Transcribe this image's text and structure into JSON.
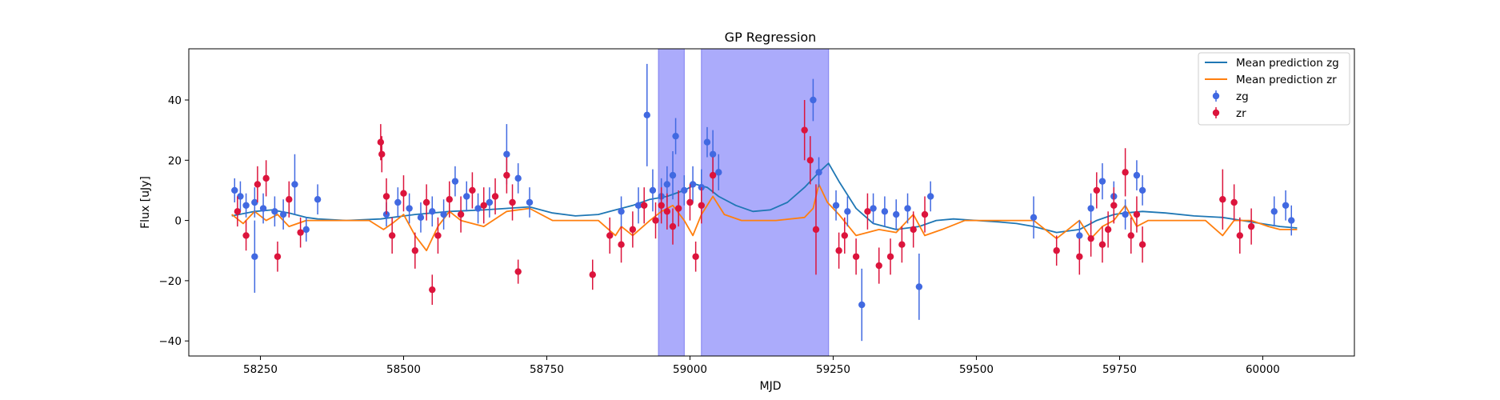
{
  "chart_data": {
    "type": "scatter",
    "title": "GP Regression",
    "xlabel": "MJD",
    "ylabel": "Flux [uJy]",
    "xlim": [
      58125,
      60160
    ],
    "ylim": [
      -45,
      57
    ],
    "x_ticks": [
      58250,
      58500,
      58750,
      59000,
      59250,
      59500,
      59750,
      60000
    ],
    "y_ticks": [
      -40,
      -20,
      0,
      20,
      40
    ],
    "grid": false,
    "legend_position": "top-right",
    "shaded_regions": [
      [
        58945,
        58990
      ],
      [
        59020,
        59242
      ]
    ],
    "shade_color": "#a6a6fb",
    "series": [
      {
        "name": "Mean prediction zg",
        "kind": "line",
        "color": "#1f77b4",
        "x": [
          58200,
          58240,
          58270,
          58300,
          58330,
          58350,
          58400,
          58460,
          58520,
          58580,
          58640,
          58680,
          58720,
          58760,
          58800,
          58840,
          58870,
          58900,
          58930,
          58960,
          58990,
          59010,
          59030,
          59050,
          59080,
          59110,
          59140,
          59170,
          59200,
          59225,
          59242,
          59260,
          59290,
          59320,
          59360,
          59400,
          59430,
          59460,
          59500,
          59540,
          59570,
          59600,
          59640,
          59680,
          59710,
          59740,
          59760,
          59790,
          59830,
          59880,
          59930,
          59980,
          60030,
          60060
        ],
        "y": [
          1.5,
          3,
          3.5,
          2.5,
          1,
          0.5,
          0,
          0.5,
          2,
          3,
          3.5,
          4,
          4.5,
          2.5,
          1.5,
          2,
          3.5,
          5,
          7,
          8,
          10,
          12,
          11,
          8,
          5,
          3,
          3.5,
          6,
          11,
          16,
          19,
          13,
          4,
          -1,
          -3,
          -2,
          0,
          0.5,
          0,
          -0.5,
          -1,
          -2,
          -4,
          -3,
          0,
          2,
          2.5,
          3,
          2.5,
          1.5,
          1,
          -0.5,
          -2,
          -2.5
        ]
      },
      {
        "name": "Mean prediction zr",
        "kind": "line",
        "color": "#ff7f0e",
        "x": [
          58200,
          58220,
          58240,
          58260,
          58280,
          58300,
          58330,
          58380,
          58440,
          58465,
          58480,
          58500,
          58520,
          58540,
          58560,
          58580,
          58600,
          58640,
          58680,
          58720,
          58760,
          58800,
          58840,
          58870,
          58880,
          58900,
          58930,
          58950,
          58970,
          58990,
          59005,
          59020,
          59040,
          59060,
          59090,
          59150,
          59200,
          59215,
          59225,
          59240,
          59260,
          59290,
          59330,
          59360,
          59390,
          59410,
          59440,
          59480,
          59530,
          59600,
          59640,
          59660,
          59680,
          59700,
          59720,
          59740,
          59760,
          59780,
          59800,
          59850,
          59900,
          59930,
          59950,
          59980,
          60010,
          60030,
          60060
        ],
        "y": [
          2,
          -1,
          3,
          0,
          2,
          -2,
          0,
          0,
          0,
          -3,
          -1,
          2,
          -5,
          -10,
          -2,
          3,
          0,
          -2,
          3,
          4,
          0,
          0,
          0,
          -5,
          -2,
          -5,
          0,
          3,
          5,
          0,
          -5,
          2,
          8,
          2,
          0,
          0,
          1,
          4,
          12,
          6,
          2,
          -5,
          -3,
          -4,
          2,
          -5,
          -3,
          0,
          0,
          0,
          -6,
          -3,
          0,
          -6,
          -2,
          0,
          5,
          -2,
          0,
          0,
          0,
          -5,
          0,
          0,
          -2,
          -3,
          -3
        ]
      },
      {
        "name": "zg",
        "kind": "errorbar",
        "color": "#4169e1",
        "x": [
          58205,
          58215,
          58225,
          58240,
          58240,
          58255,
          58275,
          58290,
          58310,
          58330,
          58350,
          58470,
          58490,
          58510,
          58530,
          58550,
          58570,
          58590,
          58610,
          58630,
          58650,
          58680,
          58700,
          58720,
          58880,
          58910,
          58925,
          58935,
          58950,
          58960,
          58970,
          58975,
          58990,
          59005,
          59020,
          59030,
          59040,
          59050,
          59215,
          59225,
          59255,
          59275,
          59300,
          59320,
          59340,
          59360,
          59380,
          59400,
          59420,
          59600,
          59680,
          59700,
          59720,
          59740,
          59760,
          59780,
          59790,
          60020,
          60040,
          60050
        ],
        "y": [
          10,
          8,
          5,
          6,
          -12,
          4,
          3,
          2,
          12,
          -3,
          7,
          2,
          6,
          4,
          1,
          3,
          2,
          13,
          8,
          4,
          6,
          22,
          14,
          6,
          3,
          5,
          35,
          10,
          8,
          12,
          15,
          28,
          10,
          12,
          11,
          26,
          22,
          16,
          40,
          16,
          5,
          3,
          -28,
          4,
          3,
          2,
          4,
          -22,
          8,
          1,
          -5,
          4,
          13,
          8,
          2,
          15,
          10,
          3,
          5,
          0
        ],
        "err": [
          4,
          5,
          4,
          5,
          12,
          5,
          5,
          5,
          10,
          4,
          5,
          4,
          5,
          5,
          5,
          5,
          5,
          5,
          5,
          5,
          5,
          10,
          5,
          5,
          5,
          6,
          17,
          7,
          6,
          6,
          8,
          6,
          5,
          6,
          6,
          5,
          8,
          6,
          7,
          5,
          5,
          5,
          12,
          5,
          5,
          5,
          5,
          11,
          5,
          7,
          5,
          5,
          6,
          5,
          5,
          5,
          5,
          5,
          5,
          5
        ]
      },
      {
        "name": "zr",
        "kind": "errorbar",
        "color": "#dc143c",
        "x": [
          58210,
          58225,
          58245,
          58260,
          58280,
          58300,
          58320,
          58460,
          58462,
          58470,
          58480,
          58500,
          58520,
          58540,
          58550,
          58560,
          58580,
          58600,
          58620,
          58640,
          58660,
          58680,
          58690,
          58700,
          58830,
          58860,
          58880,
          58900,
          58920,
          58940,
          58950,
          58960,
          58970,
          58980,
          59000,
          59010,
          59020,
          59040,
          59200,
          59210,
          59220,
          59260,
          59270,
          59290,
          59310,
          59330,
          59350,
          59370,
          59390,
          59410,
          59640,
          59680,
          59700,
          59710,
          59720,
          59730,
          59740,
          59760,
          59770,
          59780,
          59790,
          59930,
          59950,
          59960,
          59980
        ],
        "y": [
          3,
          -5,
          12,
          14,
          -12,
          7,
          -4,
          26,
          22,
          8,
          -5,
          9,
          -10,
          6,
          -23,
          -5,
          7,
          2,
          10,
          5,
          8,
          15,
          6,
          -17,
          -18,
          -5,
          -8,
          -3,
          5,
          0,
          5,
          3,
          -2,
          4,
          6,
          -12,
          5,
          15,
          30,
          20,
          -3,
          -10,
          -5,
          -12,
          3,
          -15,
          -12,
          -8,
          -3,
          2,
          -10,
          -12,
          -6,
          10,
          -8,
          -3,
          5,
          16,
          -5,
          2,
          -8,
          7,
          6,
          -5,
          -2
        ],
        "err": [
          5,
          5,
          6,
          6,
          5,
          6,
          5,
          6,
          6,
          6,
          6,
          6,
          6,
          6,
          5,
          6,
          6,
          6,
          6,
          6,
          6,
          6,
          6,
          4,
          5,
          6,
          6,
          6,
          6,
          6,
          6,
          6,
          6,
          6,
          6,
          5,
          6,
          6,
          10,
          8,
          15,
          6,
          6,
          6,
          6,
          6,
          6,
          6,
          6,
          6,
          5,
          6,
          6,
          6,
          6,
          6,
          6,
          8,
          6,
          6,
          6,
          10,
          6,
          6,
          6
        ]
      }
    ]
  }
}
